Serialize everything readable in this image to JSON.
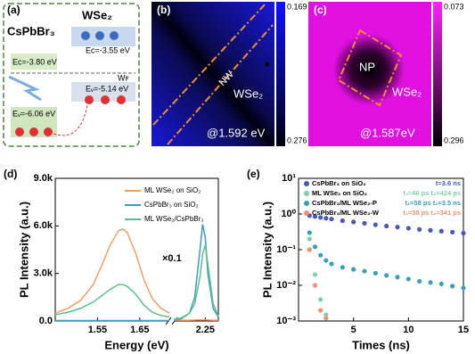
{
  "panels": {
    "a": {
      "label": "(a)",
      "left": "CsPbBr₃",
      "right": "WSe₂",
      "levels": [
        "Eᴄ=-3.55 eV",
        "Eᴄ=-3.80 eV",
        "Wꜰ",
        "Eᵥ=-5.14 eV",
        "Eᵥ=-6.06 eV"
      ]
    },
    "b": {
      "label": "(b)",
      "colorbar": [
        "0.169",
        "0.276"
      ],
      "region": "NW",
      "material": "WSe₂",
      "energy": "@1.592 eV"
    },
    "c": {
      "label": "(c)",
      "colorbar": [
        "0.073",
        "0.296"
      ],
      "region": "NP",
      "material": "WSe₂",
      "energy": "@1.587eV"
    }
  },
  "chart_data": [
    {
      "type": "line",
      "label": "(d)",
      "xlabel": "Energy (eV)",
      "ylabel": "PL Intensity (a.u.)",
      "annotation": "×0.1",
      "x": [
        1.45,
        1.48,
        1.51,
        1.54,
        1.56,
        1.58,
        1.6,
        1.61,
        1.62,
        1.64,
        1.66,
        1.68,
        1.7,
        1.72,
        2.13,
        2.16,
        2.19,
        2.21,
        2.23,
        2.24,
        2.25,
        2.26,
        2.28,
        2.3
      ],
      "xlim": [
        1.45,
        2.3
      ],
      "xbreak": [
        1.72,
        2.13
      ],
      "xticks": [
        1.55,
        1.65,
        2.25
      ],
      "ylim": [
        0,
        9000
      ],
      "yticks": [
        {
          "value": 0,
          "label": "0.0"
        },
        {
          "value": 3000,
          "label": "3.0k"
        },
        {
          "value": 6000,
          "label": "6.0k"
        },
        {
          "value": 9000,
          "label": "9.0k"
        }
      ],
      "series": [
        {
          "name": "ML WSe₂ on SiO₂",
          "color": "#f0a060",
          "values": [
            500,
            800,
            1300,
            2300,
            3500,
            4800,
            5700,
            5800,
            5600,
            4300,
            2600,
            1400,
            800,
            500,
            50,
            50,
            50,
            60,
            80,
            80,
            80,
            60,
            50,
            50
          ]
        },
        {
          "name": "CsPbBr₃ on SiO₂",
          "color": "#3a9ccc",
          "values": [
            30,
            30,
            30,
            30,
            30,
            30,
            30,
            30,
            30,
            30,
            30,
            30,
            30,
            30,
            50,
            150,
            500,
            1500,
            4500,
            6100,
            5300,
            3000,
            800,
            250
          ]
        },
        {
          "name": "ML WSe₂/CsPbBr₃",
          "color": "#5cc08a",
          "values": [
            400,
            550,
            800,
            1200,
            1600,
            2000,
            2300,
            2300,
            2200,
            1700,
            1000,
            550,
            350,
            250,
            100,
            200,
            500,
            1100,
            2800,
            4200,
            4800,
            3600,
            1100,
            300
          ]
        }
      ]
    },
    {
      "type": "scatter",
      "label": "(e)",
      "xlabel": "Times (ns)",
      "ylabel": "PL Intensity (a.u.)",
      "yscale": "log",
      "x": [
        1,
        1.5,
        2,
        2.5,
        3,
        4,
        5,
        6,
        7,
        8,
        9,
        10,
        11,
        12,
        13,
        14,
        15
      ],
      "xlim": [
        0,
        15
      ],
      "xticks": [
        5,
        10,
        15
      ],
      "ylim": [
        0.001,
        10
      ],
      "yticks": [
        {
          "value": 10,
          "label": "10¹"
        },
        {
          "value": 1,
          "label": "10⁰"
        },
        {
          "value": 0.1,
          "label": "10⁻¹"
        },
        {
          "value": 0.01,
          "label": "10⁻²"
        },
        {
          "value": 0.001,
          "label": "10⁻³"
        }
      ],
      "series": [
        {
          "name": "CsPbBr₃ on SiO₂",
          "lifetime": "t=3.6 ns",
          "color": "#4a58b8",
          "values": [
            0.9,
            0.85,
            0.8,
            0.76,
            0.72,
            0.65,
            0.6,
            0.55,
            0.5,
            0.46,
            0.43,
            0.4,
            0.37,
            0.35,
            0.33,
            0.31,
            0.29
          ]
        },
        {
          "name": "ML WSe₂ on SiO₂",
          "lifetime": "t₁=46 ps t₂=424 ps",
          "color": "#7fd0a8",
          "values": [
            0.2,
            0.02,
            0.004,
            0.0015,
            null,
            null,
            null,
            null,
            null,
            null,
            null,
            null,
            null,
            null,
            null,
            null,
            null
          ]
        },
        {
          "name": "CsPbBr₃/ML WSe₂-P",
          "lifetime": "t₁=58 ps t₁=3.5 ns",
          "color": "#3aa0b8",
          "values": [
            0.3,
            0.12,
            0.07,
            0.05,
            0.04,
            0.032,
            0.028,
            0.025,
            0.022,
            0.019,
            0.017,
            0.015,
            0.013,
            0.012,
            0.011,
            0.0095,
            0.0085
          ]
        },
        {
          "name": "CsPbBr₃/ML WSe₂-W",
          "lifetime": "t₁=38 ps t₂=341 ps",
          "color": "#f09070",
          "values": [
            0.1,
            0.01,
            0.002,
            0.0012,
            null,
            null,
            null,
            null,
            null,
            null,
            null,
            null,
            null,
            null,
            null,
            null,
            null
          ]
        }
      ]
    }
  ]
}
